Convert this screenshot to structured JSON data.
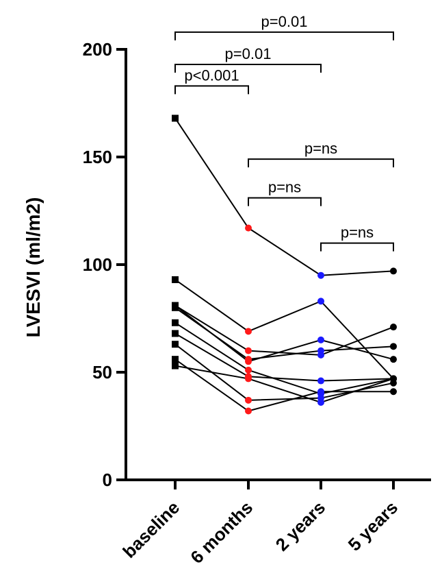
{
  "chart_data": {
    "type": "scatter",
    "ylabel": "LVESVI (ml/m2)",
    "xlabel": "",
    "categories": [
      "baseline",
      "6 months",
      "2 years",
      "5 years"
    ],
    "ylim": [
      0,
      200
    ],
    "yticks": [
      0,
      50,
      100,
      150,
      200
    ],
    "point_colors": [
      "#000000",
      "#ff1a1a",
      "#1a1aff",
      "#000000"
    ],
    "subjects": [
      {
        "values": [
          168,
          117,
          95,
          97
        ]
      },
      {
        "values": [
          93,
          69,
          83,
          47
        ]
      },
      {
        "values": [
          81,
          60,
          58,
          71
        ]
      },
      {
        "values": [
          81,
          55,
          65,
          56
        ]
      },
      {
        "values": [
          80,
          56,
          60,
          62
        ]
      },
      {
        "values": [
          73,
          51,
          40,
          47
        ]
      },
      {
        "values": [
          68,
          48,
          46,
          47
        ]
      },
      {
        "values": [
          63,
          37,
          38,
          45
        ]
      },
      {
        "values": [
          56,
          32,
          41,
          41
        ]
      },
      {
        "values": [
          53,
          47,
          36,
          47
        ]
      }
    ],
    "significance": [
      {
        "from": 0,
        "to": 1,
        "y": 183,
        "label": "p<0.001"
      },
      {
        "from": 0,
        "to": 2,
        "y": 193,
        "label": "p=0.01"
      },
      {
        "from": 0,
        "to": 3,
        "y": 208,
        "label": "p=0.01"
      },
      {
        "from": 1,
        "to": 3,
        "y": 149,
        "label": "p=ns"
      },
      {
        "from": 1,
        "to": 2,
        "y": 131,
        "label": "p=ns"
      },
      {
        "from": 2,
        "to": 3,
        "y": 110,
        "label": "p=ns"
      }
    ]
  }
}
